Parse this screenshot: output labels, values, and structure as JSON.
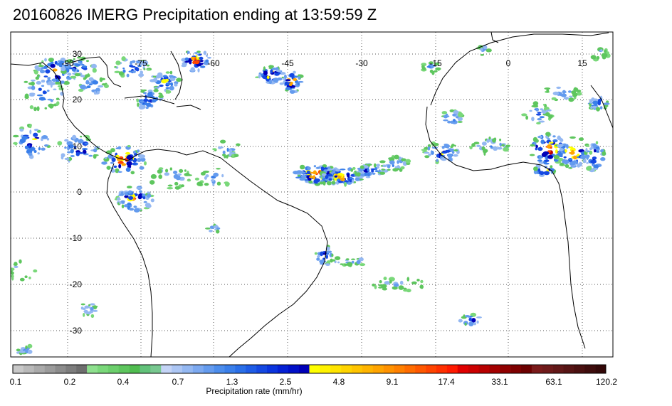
{
  "title": "20160826 IMERG Precipitation ending at 13:59:59 Z",
  "map": {
    "lon_labels": [
      "-90",
      "-75",
      "-60",
      "-45",
      "-30",
      "-15",
      "0",
      "15"
    ],
    "lat_labels": [
      "30",
      "20",
      "10",
      "0",
      "-10",
      "-20",
      "-30"
    ],
    "gridlines": "dotted",
    "coastline_color": "#000000",
    "frame_color": "#000000"
  },
  "colorbar": {
    "title": "Precipitation rate (mm/hr)",
    "tick_labels": [
      "0.1",
      "0.2",
      "0.4",
      "0.7",
      "1.3",
      "2.5",
      "4.8",
      "9.1",
      "17.4",
      "33.1",
      "63.1",
      "120.2"
    ],
    "colors": [
      "#c8c8c8",
      "#b9b9b9",
      "#aaaaaa",
      "#9b9b9b",
      "#8c8c8c",
      "#7d7d7d",
      "#6e6e6e",
      "#8ee08e",
      "#7ad87a",
      "#6ccf6c",
      "#5ec65e",
      "#50bd50",
      "#62c27a",
      "#78c890",
      "#c4d4f6",
      "#acc6f4",
      "#94b8f2",
      "#7ca9f0",
      "#649bee",
      "#4c8dec",
      "#3a7fea",
      "#2a6fe8",
      "#1e5ce6",
      "#1448e2",
      "#0a34de",
      "#0520d4",
      "#0010c8",
      "#0000b8",
      "#ffff00",
      "#fff200",
      "#ffe400",
      "#ffd400",
      "#ffc400",
      "#ffb400",
      "#ffa400",
      "#ff9200",
      "#ff8000",
      "#ff6c00",
      "#ff5800",
      "#ff4400",
      "#ff3000",
      "#ff1a00",
      "#e00000",
      "#cc0000",
      "#b80000",
      "#a40000",
      "#900000",
      "#7e0000",
      "#6c0000",
      "#7a1a1a",
      "#6e1a1a",
      "#621818",
      "#561414",
      "#4a1010",
      "#3e0c0c",
      "#330808"
    ]
  }
}
